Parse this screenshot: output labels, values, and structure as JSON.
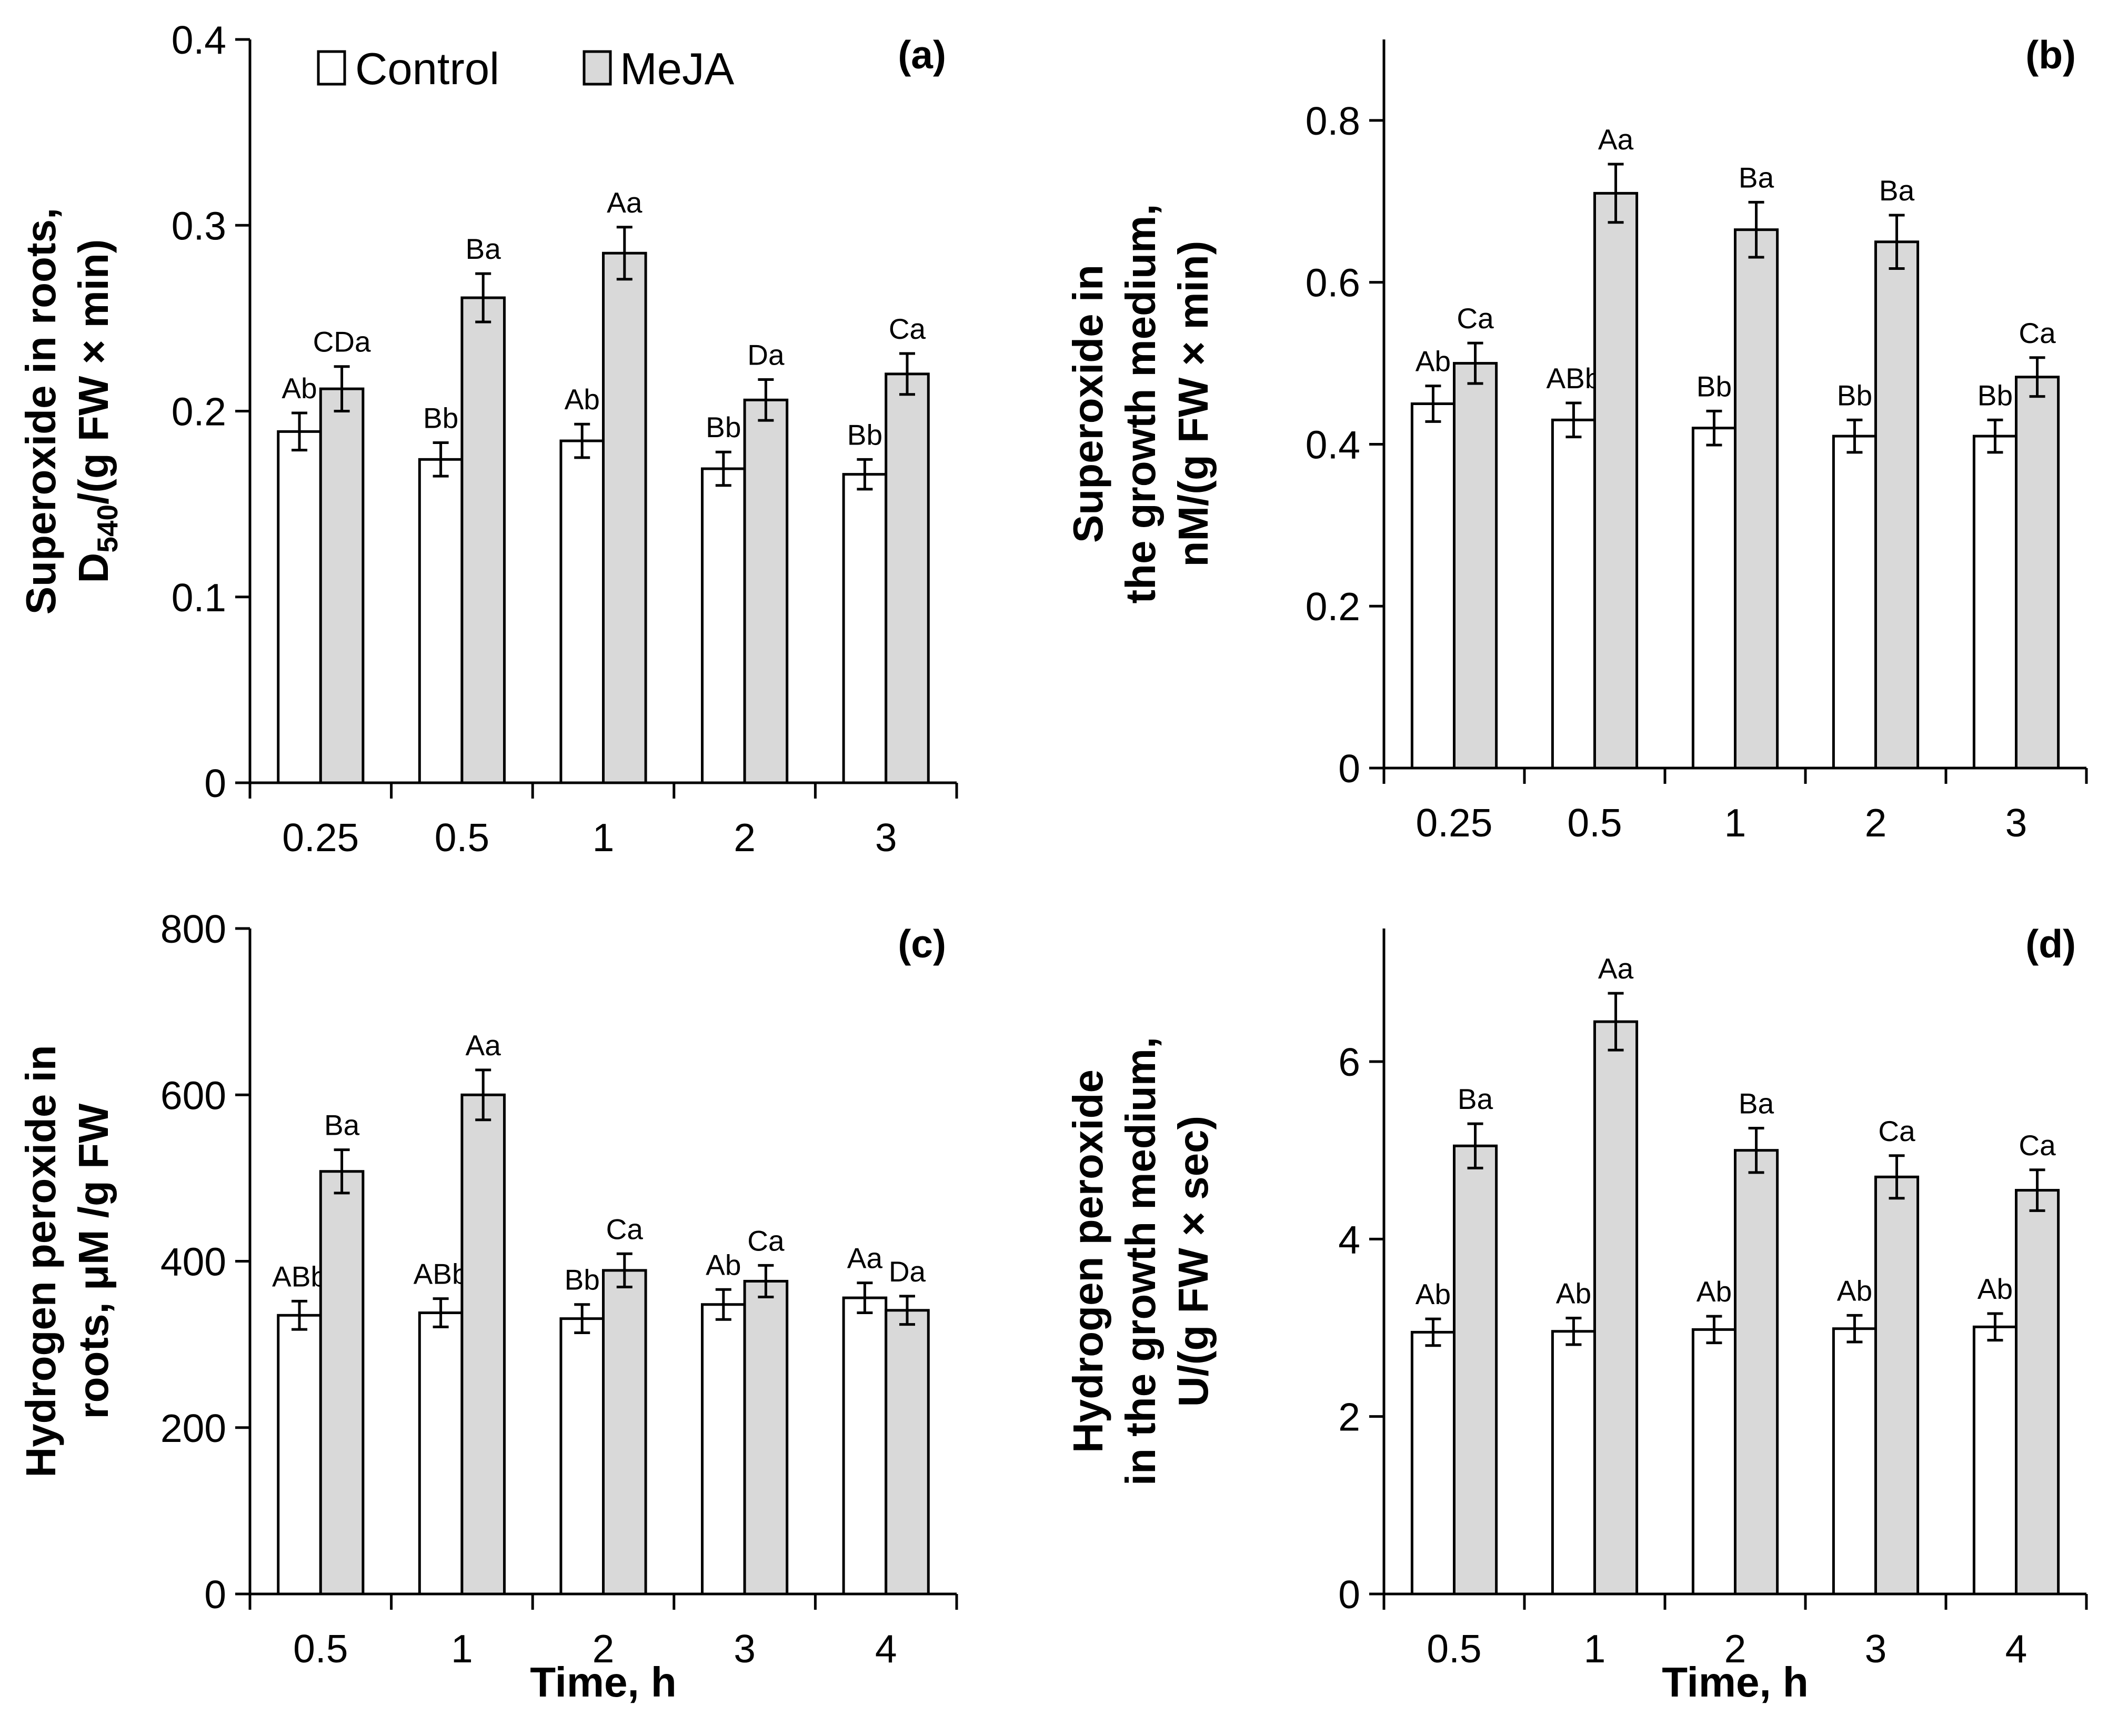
{
  "figure_title": "",
  "colors": {
    "control_fill": "#ffffff",
    "meja_fill": "#d9d9d9",
    "stroke": "#000000"
  },
  "legend": {
    "control": "Control",
    "meja": "MeJA"
  },
  "chart_data": [
    {
      "type": "bar",
      "panel": "a",
      "tag": "(a)",
      "title": "",
      "ylabel": [
        "Superoxide in roots,",
        "D540/(g FW × min)"
      ],
      "xlabel": "",
      "ylim": [
        0,
        0.4
      ],
      "yticks": [
        "0",
        "0.1",
        "0.2",
        "0.3",
        "0.4"
      ],
      "categories": [
        "0.25",
        "0.5",
        "1",
        "2",
        "3"
      ],
      "series": [
        {
          "name": "Control",
          "values": [
            0.189,
            0.174,
            0.184,
            0.169,
            0.166
          ],
          "errors": [
            0.01,
            0.009,
            0.009,
            0.009,
            0.008
          ],
          "labels": [
            "Ab",
            "Bb",
            "Ab",
            "Bb",
            "Bb"
          ]
        },
        {
          "name": "MeJA",
          "values": [
            0.212,
            0.261,
            0.285,
            0.206,
            0.22
          ],
          "errors": [
            0.012,
            0.013,
            0.014,
            0.011,
            0.011
          ],
          "labels": [
            "CDa",
            "Ba",
            "Aa",
            "Da",
            "Ca"
          ]
        }
      ]
    },
    {
      "type": "bar",
      "panel": "b",
      "tag": "(b)",
      "title": "",
      "ylabel": [
        "Superoxide in",
        "the growth medium,",
        "nM/(g FW × min)"
      ],
      "xlabel": "",
      "ylim": [
        0,
        0.9
      ],
      "yticks": [
        "0",
        "0.2",
        "0.4",
        "0.6",
        "0.8"
      ],
      "categories": [
        "0.25",
        "0.5",
        "1",
        "2",
        "3"
      ],
      "series": [
        {
          "name": "Control",
          "values": [
            0.45,
            0.43,
            0.42,
            0.41,
            0.41
          ],
          "errors": [
            0.022,
            0.021,
            0.021,
            0.02,
            0.02
          ],
          "labels": [
            "Ab",
            "ABb",
            "Bb",
            "Bb",
            "Bb"
          ]
        },
        {
          "name": "MeJA",
          "values": [
            0.5,
            0.71,
            0.665,
            0.65,
            0.483
          ],
          "errors": [
            0.025,
            0.036,
            0.034,
            0.033,
            0.024
          ],
          "labels": [
            "Ca",
            "Aa",
            "Ba",
            "Ba",
            "Ca"
          ]
        }
      ]
    },
    {
      "type": "bar",
      "panel": "c",
      "tag": "(c)",
      "title": "",
      "ylabel": [
        "Hydrogen peroxide in",
        "roots, μM /g FW"
      ],
      "xlabel": "Time, h",
      "ylim": [
        0,
        800
      ],
      "yticks": [
        "0",
        "200",
        "400",
        "600",
        "800"
      ],
      "categories": [
        "0.5",
        "1",
        "2",
        "3",
        "4"
      ],
      "series": [
        {
          "name": "Control",
          "values": [
            335,
            338,
            331,
            348,
            356
          ],
          "errors": [
            17,
            17,
            17,
            18,
            18
          ],
          "labels": [
            "ABb",
            "ABb",
            "Bb",
            "Ab",
            "Aa"
          ]
        },
        {
          "name": "MeJA",
          "values": [
            508,
            600,
            389,
            376,
            341
          ],
          "errors": [
            26,
            30,
            20,
            19,
            17
          ],
          "labels": [
            "Ba",
            "Aa",
            "Ca",
            "Ca",
            "Da"
          ]
        }
      ]
    },
    {
      "type": "bar",
      "panel": "d",
      "tag": "(d)",
      "title": "",
      "ylabel": [
        "Hydrogen peroxide",
        "in the growth medium,",
        "U/(g FW × sec)"
      ],
      "xlabel": "Time, h",
      "ylim": [
        0,
        7.5
      ],
      "yticks": [
        "0",
        "2",
        "4",
        "6"
      ],
      "categories": [
        "0.5",
        "1",
        "2",
        "3",
        "4"
      ],
      "series": [
        {
          "name": "Control",
          "values": [
            2.95,
            2.96,
            2.98,
            2.99,
            3.01
          ],
          "errors": [
            0.15,
            0.15,
            0.15,
            0.15,
            0.15
          ],
          "labels": [
            "Ab",
            "Ab",
            "Ab",
            "Ab",
            "Ab"
          ]
        },
        {
          "name": "MeJA",
          "values": [
            5.05,
            6.45,
            5.0,
            4.7,
            4.55
          ],
          "errors": [
            0.25,
            0.32,
            0.25,
            0.24,
            0.23
          ],
          "labels": [
            "Ba",
            "Aa",
            "Ba",
            "Ca",
            "Ca"
          ]
        }
      ]
    }
  ]
}
